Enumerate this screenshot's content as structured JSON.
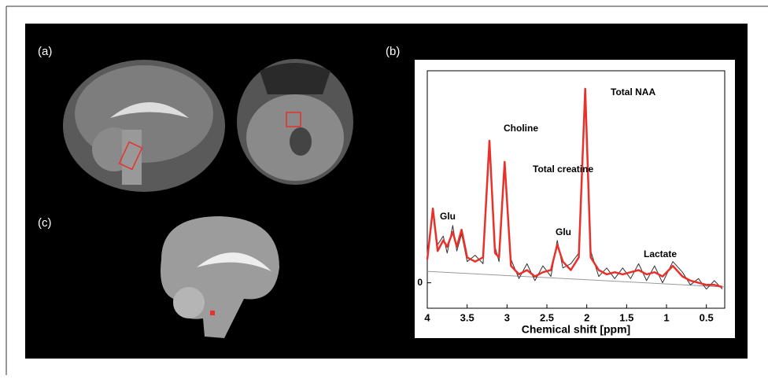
{
  "panels": {
    "a": "(a)",
    "b": "(b)",
    "c": "(c)"
  },
  "chart_data": {
    "type": "line",
    "xlabel": "Chemical shift [ppm]",
    "xlim": [
      4,
      0.27
    ],
    "ylim": [
      -0.12,
      1
    ],
    "xticks": [
      4,
      3.5,
      3,
      2.5,
      2,
      1.5,
      1,
      0.5
    ],
    "yticks": [
      0
    ],
    "annotations": [
      "Glu",
      "Choline",
      "Total creatine",
      "Glu",
      "Total NAA",
      "Lactate"
    ],
    "series": [
      {
        "color": "#9a9a9a",
        "x": [
          4,
          0.27
        ],
        "values": [
          0.054,
          -0.02
        ]
      },
      {
        "color": "#333333",
        "x": [
          4.0,
          3.93,
          3.87,
          3.8,
          3.75,
          3.68,
          3.63,
          3.57,
          3.5,
          3.4,
          3.3,
          3.22,
          3.15,
          3.1,
          3.03,
          2.95,
          2.85,
          2.75,
          2.65,
          2.55,
          2.45,
          2.37,
          2.3,
          2.2,
          2.1,
          2.02,
          1.95,
          1.85,
          1.75,
          1.65,
          1.55,
          1.45,
          1.35,
          1.25,
          1.15,
          1.05,
          0.92,
          0.8,
          0.7,
          0.6,
          0.5,
          0.4,
          0.3
        ],
        "values": [
          0.12,
          0.33,
          0.18,
          0.22,
          0.14,
          0.27,
          0.15,
          0.23,
          0.1,
          0.13,
          0.09,
          0.64,
          0.17,
          0.1,
          0.55,
          0.11,
          0.02,
          0.09,
          0.01,
          0.08,
          0.03,
          0.2,
          0.07,
          0.09,
          0.14,
          0.9,
          0.15,
          0.03,
          0.07,
          0.02,
          0.07,
          0.02,
          0.09,
          0.01,
          0.08,
          0.0,
          0.1,
          0.05,
          -0.01,
          0.02,
          -0.03,
          0.01,
          -0.03
        ]
      },
      {
        "color": "#e8312a",
        "x": [
          4.0,
          3.93,
          3.87,
          3.8,
          3.75,
          3.68,
          3.63,
          3.57,
          3.5,
          3.4,
          3.3,
          3.22,
          3.15,
          3.1,
          3.03,
          2.95,
          2.85,
          2.75,
          2.65,
          2.55,
          2.45,
          2.37,
          2.3,
          2.2,
          2.1,
          2.02,
          1.95,
          1.85,
          1.75,
          1.65,
          1.55,
          1.45,
          1.35,
          1.25,
          1.15,
          1.05,
          0.92,
          0.8,
          0.7,
          0.6,
          0.5,
          0.4,
          0.3
        ],
        "values": [
          0.11,
          0.35,
          0.15,
          0.2,
          0.17,
          0.24,
          0.17,
          0.25,
          0.12,
          0.1,
          0.12,
          0.67,
          0.14,
          0.12,
          0.57,
          0.08,
          0.04,
          0.06,
          0.03,
          0.05,
          0.06,
          0.18,
          0.1,
          0.06,
          0.12,
          0.915,
          0.12,
          0.06,
          0.04,
          0.05,
          0.04,
          0.05,
          0.06,
          0.04,
          0.05,
          0.03,
          0.08,
          0.03,
          0.01,
          0.0,
          -0.01,
          -0.01,
          -0.02
        ]
      }
    ]
  }
}
